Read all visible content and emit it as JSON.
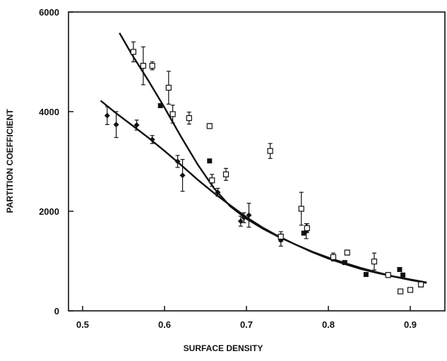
{
  "chart_data": {
    "type": "scatter",
    "title": "",
    "xlabel": "SURFACE DENSITY",
    "ylabel": "PARTITION COEFFICIENT",
    "xlim": [
      0.5,
      0.95
    ],
    "ylim": [
      0,
      6000
    ],
    "xticks": [
      "0.5",
      "0.6",
      "0.7",
      "0.8",
      "0.9"
    ],
    "yticks": [
      "0",
      "2000",
      "4000",
      "6000"
    ],
    "grid": false,
    "legend": "none",
    "series": [
      {
        "marker": "filled-diamond",
        "points": [
          {
            "x": 0.53,
            "y": 3920,
            "err": 180
          },
          {
            "x": 0.541,
            "y": 3740,
            "err": 260
          },
          {
            "x": 0.566,
            "y": 3730,
            "err": 100
          },
          {
            "x": 0.585,
            "y": 3440,
            "err": 80
          },
          {
            "x": 0.616,
            "y": 3000,
            "err": 120
          },
          {
            "x": 0.622,
            "y": 2720,
            "err": 320
          },
          {
            "x": 0.665,
            "y": 2380,
            "err": 80
          },
          {
            "x": 0.693,
            "y": 1800,
            "err": 100
          },
          {
            "x": 0.697,
            "y": 1870,
            "err": 100
          },
          {
            "x": 0.703,
            "y": 1920,
            "err": 240
          },
          {
            "x": 0.742,
            "y": 1420,
            "err": 120
          },
          {
            "x": 0.773,
            "y": 1600,
            "err": 150
          }
        ]
      },
      {
        "marker": "filled-square",
        "points": [
          {
            "x": 0.574,
            "y": 4930,
            "err": 0
          },
          {
            "x": 0.595,
            "y": 4120,
            "err": 0
          },
          {
            "x": 0.655,
            "y": 3010,
            "err": 0
          },
          {
            "x": 0.77,
            "y": 1560,
            "err": 0
          },
          {
            "x": 0.82,
            "y": 970,
            "err": 0
          },
          {
            "x": 0.846,
            "y": 730,
            "err": 0
          },
          {
            "x": 0.887,
            "y": 830,
            "err": 0
          },
          {
            "x": 0.891,
            "y": 720,
            "err": 0
          }
        ]
      },
      {
        "marker": "open-square",
        "points": [
          {
            "x": 0.562,
            "y": 5200,
            "err": 200
          },
          {
            "x": 0.574,
            "y": 4920,
            "err": 380
          },
          {
            "x": 0.585,
            "y": 4920,
            "err": 80
          },
          {
            "x": 0.605,
            "y": 4480,
            "err": 330
          },
          {
            "x": 0.61,
            "y": 3950,
            "err": 180
          },
          {
            "x": 0.63,
            "y": 3870,
            "err": 120
          },
          {
            "x": 0.655,
            "y": 3710,
            "err": 50
          },
          {
            "x": 0.658,
            "y": 2620,
            "err": 120
          },
          {
            "x": 0.675,
            "y": 2740,
            "err": 120
          },
          {
            "x": 0.729,
            "y": 3210,
            "err": 150
          },
          {
            "x": 0.742,
            "y": 1490,
            "err": 100
          },
          {
            "x": 0.767,
            "y": 2050,
            "err": 330
          },
          {
            "x": 0.774,
            "y": 1660,
            "err": 90
          },
          {
            "x": 0.806,
            "y": 1080,
            "err": 80
          },
          {
            "x": 0.823,
            "y": 1170,
            "err": 50
          },
          {
            "x": 0.856,
            "y": 990,
            "err": 170
          },
          {
            "x": 0.873,
            "y": 720,
            "err": 50
          },
          {
            "x": 0.888,
            "y": 390,
            "err": 0
          },
          {
            "x": 0.9,
            "y": 420,
            "err": 0
          },
          {
            "x": 0.913,
            "y": 530,
            "err": 50
          }
        ]
      }
    ],
    "fit_curves": [
      {
        "points": [
          [
            0.545,
            5580
          ],
          [
            0.56,
            5150
          ],
          [
            0.58,
            4630
          ],
          [
            0.6,
            4080
          ],
          [
            0.62,
            3500
          ],
          [
            0.64,
            2950
          ],
          [
            0.66,
            2470
          ],
          [
            0.68,
            2100
          ],
          [
            0.7,
            1850
          ],
          [
            0.72,
            1650
          ],
          [
            0.74,
            1480
          ],
          [
            0.76,
            1330
          ],
          [
            0.78,
            1180
          ],
          [
            0.8,
            1050
          ],
          [
            0.82,
            940
          ],
          [
            0.84,
            840
          ],
          [
            0.86,
            760
          ],
          [
            0.88,
            690
          ],
          [
            0.9,
            630
          ],
          [
            0.92,
            570
          ]
        ]
      },
      {
        "points": [
          [
            0.522,
            4220
          ],
          [
            0.54,
            3980
          ],
          [
            0.56,
            3730
          ],
          [
            0.58,
            3480
          ],
          [
            0.6,
            3210
          ],
          [
            0.62,
            2930
          ],
          [
            0.64,
            2640
          ],
          [
            0.66,
            2370
          ],
          [
            0.68,
            2120
          ],
          [
            0.7,
            1880
          ],
          [
            0.72,
            1670
          ],
          [
            0.74,
            1490
          ],
          [
            0.76,
            1330
          ],
          [
            0.78,
            1190
          ],
          [
            0.8,
            1070
          ],
          [
            0.82,
            960
          ],
          [
            0.84,
            860
          ],
          [
            0.86,
            770
          ],
          [
            0.88,
            690
          ],
          [
            0.9,
            620
          ],
          [
            0.92,
            560
          ]
        ]
      }
    ]
  }
}
